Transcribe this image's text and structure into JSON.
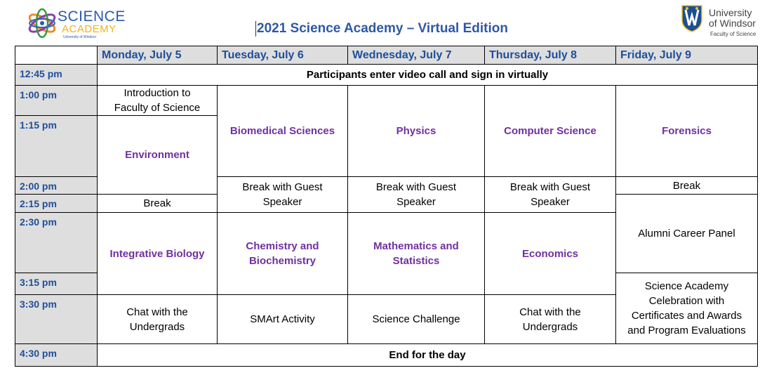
{
  "logos": {
    "left": {
      "line1": "SCIENCE",
      "line2": "ACADEMY",
      "line3": "University of Windsor"
    },
    "right": {
      "line1": "University",
      "line2": "of Windsor",
      "line3": "Faculty of Science"
    }
  },
  "title": "2021 Science Academy – Virtual Edition",
  "days": [
    "Monday, July 5",
    "Tuesday, July 6",
    "Wednesday, July 7",
    "Thursday, July 8",
    "Friday, July 9"
  ],
  "times": [
    "12:45 pm",
    "1:00 pm",
    "1:15 pm",
    "2:00 pm",
    "2:15 pm",
    "2:30 pm",
    "3:15 pm",
    "3:30 pm",
    "4:30 pm"
  ],
  "all_day": {
    "start": "Participants enter video call and sign in virtually",
    "end": "End for the day"
  },
  "monday": {
    "intro": "Introduction to Faculty of Science",
    "s1": "Environment",
    "break": "Break",
    "s2": "Integrative Biology",
    "activity": "Chat with the Undergrads"
  },
  "tuesday": {
    "s1": "Biomedical Sciences",
    "break": "Break with Guest Speaker",
    "s2": "Chemistry and Biochemistry",
    "activity": "SMArt Activity"
  },
  "wednesday": {
    "s1": "Physics",
    "break": "Break with Guest Speaker",
    "s2": "Mathematics and Statistics",
    "activity": "Science Challenge"
  },
  "thursday": {
    "s1": "Computer Science",
    "break": "Break with Guest Speaker",
    "s2": "Economics",
    "activity": "Chat with the Undergrads"
  },
  "friday": {
    "s1": "Forensics",
    "break": "Break",
    "panel": "Alumni Career Panel",
    "celebration": "Science Academy Celebration with Certificates and Awards and Program Evaluations"
  },
  "colors": {
    "header_blue": "#1f4e9a",
    "subject_purple": "#7030a0",
    "time_bg": "#dedede"
  }
}
